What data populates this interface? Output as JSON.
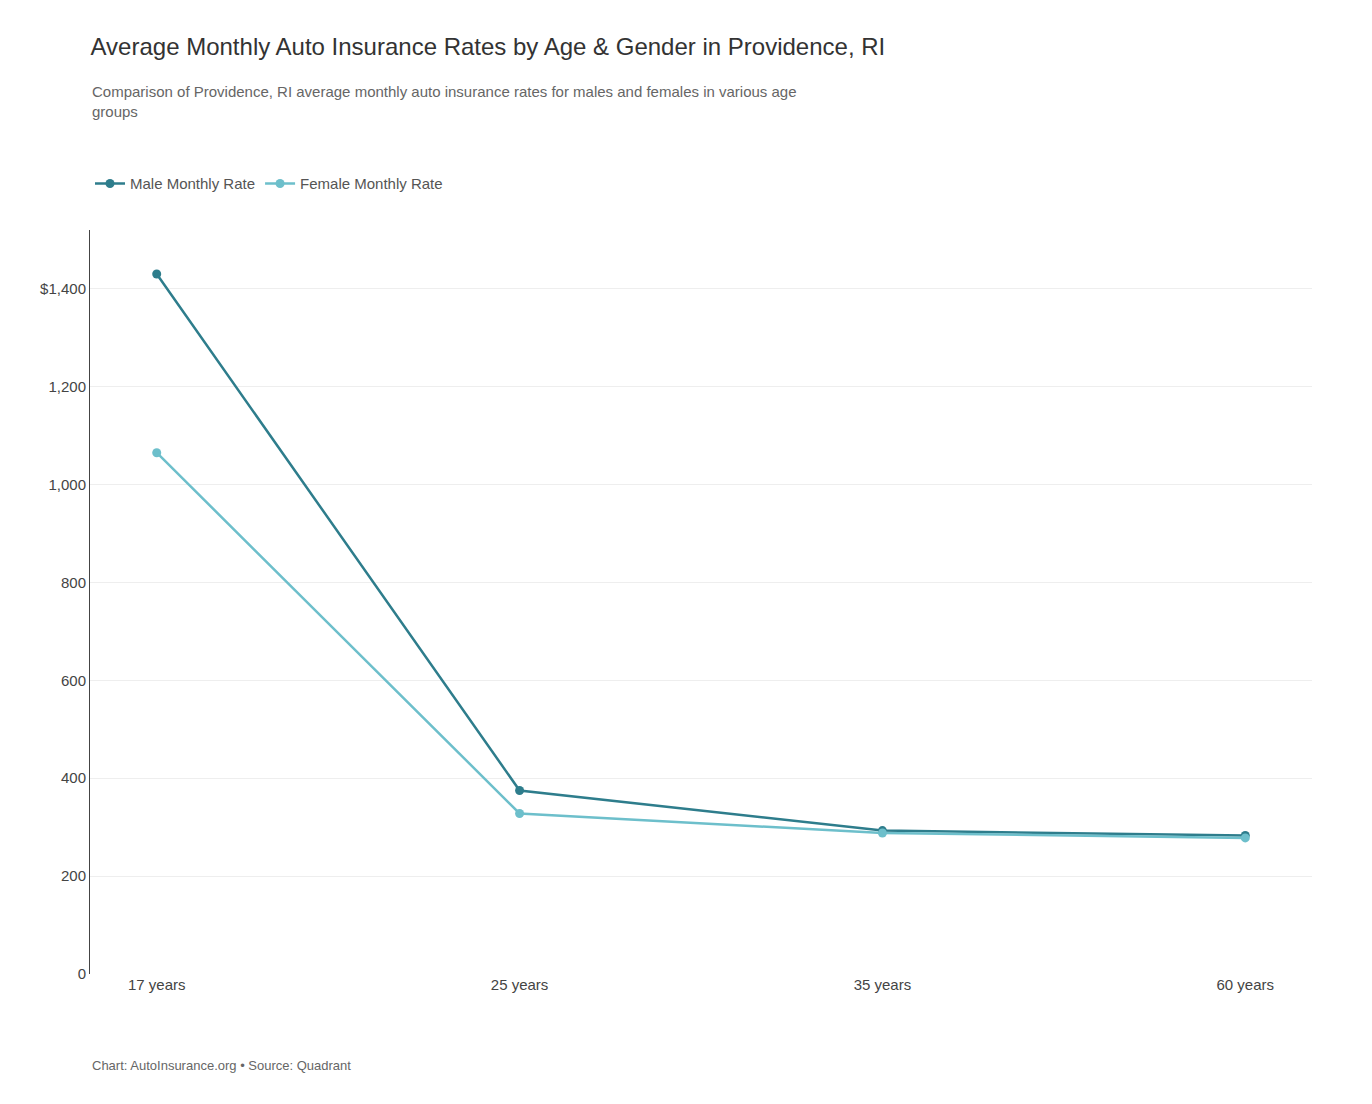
{
  "chart_data": {
    "type": "line",
    "title": "Average Monthly Auto Insurance Rates by Age & Gender in Providence, RI",
    "subtitle": "Comparison of Providence, RI average monthly auto insurance rates for males and females in various age\ngroups",
    "annotations": [
      "Chart: AutoInsurance.org • Source: Quadrant"
    ],
    "categories": [
      "17 years",
      "25 years",
      "35 years",
      "60 years"
    ],
    "series": [
      {
        "name": "Male Monthly Rate",
        "color": "#2e7d8c",
        "values": [
          1430,
          375,
          293,
          283
        ]
      },
      {
        "name": "Female Monthly Rate",
        "color": "#6dbfcb",
        "values": [
          1065,
          328,
          288,
          278
        ]
      }
    ],
    "ylim": [
      0,
      1520
    ],
    "yticks": [
      0,
      200,
      400,
      600,
      800,
      {
        "value": 1000,
        "label": "1,000"
      },
      {
        "value": 1200,
        "label": "1,200"
      },
      {
        "value": 1400,
        "label": "$1,400"
      }
    ],
    "grid": true,
    "legend": "upper left",
    "marker": "circle"
  }
}
